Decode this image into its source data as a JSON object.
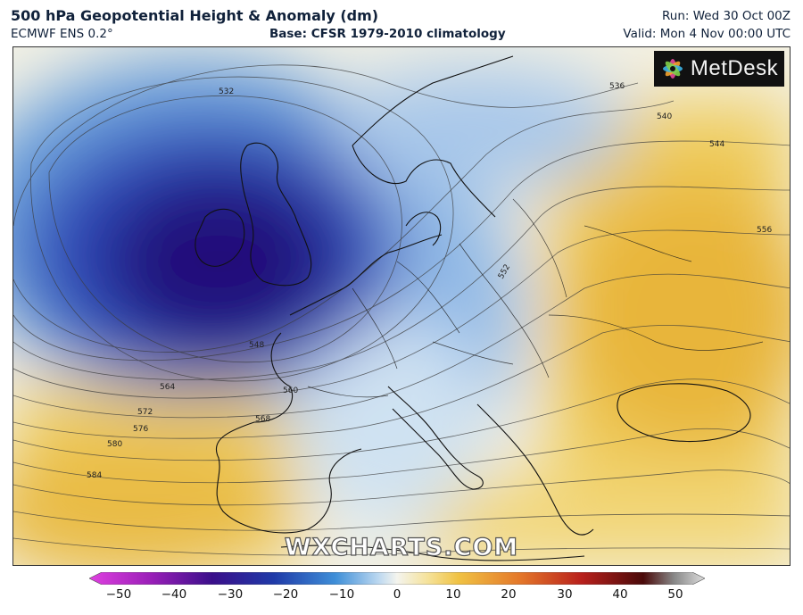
{
  "header": {
    "title": "500 hPa Geopotential Height & Anomaly (dm)",
    "model": "ECMWF ENS 0.2°",
    "base": "Base: CFSR 1979-2010 climatology",
    "run": "Run: Wed 30 Oct 00Z",
    "valid": "Valid: Mon 4 Nov 00:00 UTC"
  },
  "branding": {
    "logo_text": "MetDesk",
    "watermark": "WXCHARTS.COM"
  },
  "contours": [
    {
      "label": "532"
    },
    {
      "label": "536"
    },
    {
      "label": "540"
    },
    {
      "label": "544"
    },
    {
      "label": "548"
    },
    {
      "label": "552"
    },
    {
      "label": "556"
    },
    {
      "label": "560"
    },
    {
      "label": "564"
    },
    {
      "label": "568"
    },
    {
      "label": "572"
    },
    {
      "label": "576"
    },
    {
      "label": "580"
    },
    {
      "label": "584"
    }
  ],
  "colorbar": {
    "ticks": [
      "−50",
      "−40",
      "−30",
      "−20",
      "−10",
      "0",
      "10",
      "20",
      "30",
      "40",
      "50"
    ]
  },
  "colors": {
    "deep_low": "#24107a",
    "low": "#2a4fc0",
    "mid_blue": "#6aa0dd",
    "light_blue": "#cfe2f2",
    "neutral": "#f3f1e4",
    "light_yellow": "#f7e7a8",
    "yellow": "#efcc5c",
    "deep_yellow": "#e8b53a"
  }
}
